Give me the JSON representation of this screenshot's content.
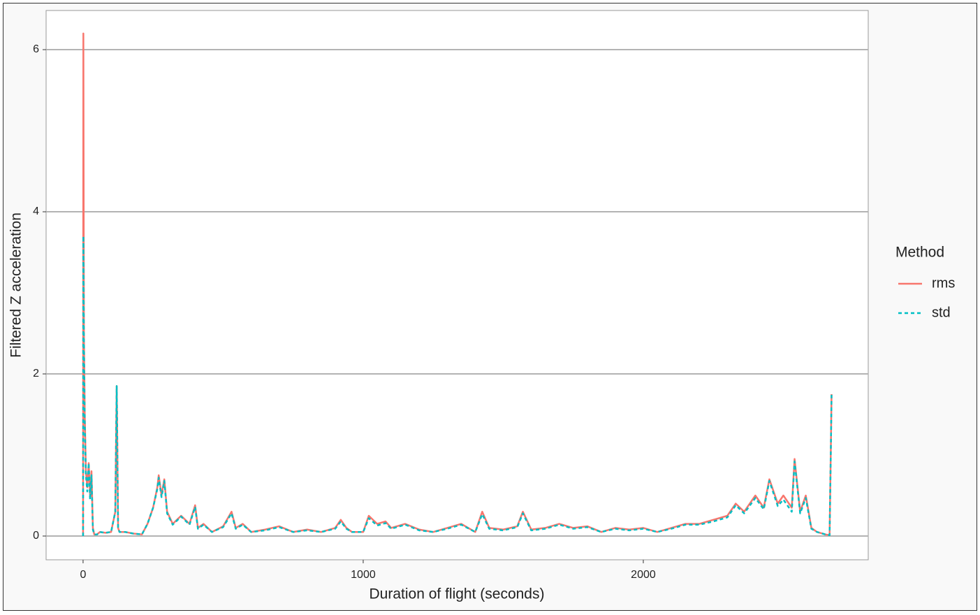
{
  "chart_data": {
    "type": "line",
    "x_label": "Duration of flight (seconds)",
    "y_label": "Filtered Z acceleration",
    "legend_title": "Method",
    "legend_position": "right",
    "grid": true,
    "xlim": [
      -132,
      2803
    ],
    "ylim": [
      -0.293,
      6.483
    ],
    "xticks": [
      0,
      1000,
      2000
    ],
    "yticks": [
      0,
      2,
      4,
      6
    ],
    "x": [
      0,
      1,
      3,
      6,
      10,
      15,
      20,
      25,
      30,
      35,
      40,
      50,
      60,
      80,
      100,
      115,
      120,
      122,
      125,
      130,
      150,
      180,
      210,
      230,
      250,
      265,
      270,
      280,
      290,
      300,
      320,
      350,
      380,
      400,
      410,
      430,
      460,
      500,
      530,
      545,
      570,
      600,
      650,
      700,
      750,
      800,
      850,
      900,
      920,
      940,
      960,
      1000,
      1020,
      1050,
      1080,
      1100,
      1150,
      1200,
      1250,
      1300,
      1350,
      1400,
      1425,
      1450,
      1500,
      1550,
      1570,
      1600,
      1650,
      1700,
      1750,
      1800,
      1850,
      1900,
      1950,
      2000,
      2050,
      2100,
      2150,
      2200,
      2250,
      2300,
      2330,
      2360,
      2400,
      2430,
      2450,
      2480,
      2500,
      2530,
      2540,
      2560,
      2580,
      2600,
      2620,
      2650,
      2665,
      2670,
      2672
    ],
    "series": [
      {
        "name": "rms",
        "color": "#F8766D",
        "dash": false,
        "values": [
          0,
          6.2,
          2.5,
          1.5,
          0.8,
          0.6,
          0.9,
          0.5,
          0.8,
          0.1,
          0.02,
          0.02,
          0.05,
          0.04,
          0.05,
          0.3,
          1.85,
          1.2,
          0.1,
          0.05,
          0.05,
          0.03,
          0.02,
          0.15,
          0.35,
          0.6,
          0.75,
          0.5,
          0.7,
          0.3,
          0.15,
          0.25,
          0.15,
          0.38,
          0.1,
          0.15,
          0.05,
          0.12,
          0.3,
          0.1,
          0.15,
          0.05,
          0.08,
          0.12,
          0.05,
          0.08,
          0.05,
          0.1,
          0.2,
          0.1,
          0.05,
          0.05,
          0.25,
          0.15,
          0.18,
          0.1,
          0.15,
          0.08,
          0.05,
          0.1,
          0.15,
          0.05,
          0.3,
          0.1,
          0.08,
          0.12,
          0.3,
          0.08,
          0.1,
          0.15,
          0.1,
          0.12,
          0.05,
          0.1,
          0.08,
          0.1,
          0.05,
          0.1,
          0.15,
          0.15,
          0.2,
          0.25,
          0.4,
          0.3,
          0.5,
          0.35,
          0.7,
          0.4,
          0.5,
          0.35,
          0.95,
          0.3,
          0.5,
          0.1,
          0.05,
          0.02,
          0.01,
          1.2,
          1.75
        ]
      },
      {
        "name": "std",
        "color": "#00BFC4",
        "dash": true,
        "values": [
          0,
          3.7,
          2.4,
          1.4,
          0.75,
          0.55,
          0.9,
          0.45,
          0.75,
          0.08,
          0.02,
          0.02,
          0.05,
          0.04,
          0.05,
          0.3,
          1.85,
          1.2,
          0.1,
          0.05,
          0.05,
          0.03,
          0.02,
          0.15,
          0.35,
          0.58,
          0.72,
          0.48,
          0.68,
          0.28,
          0.14,
          0.24,
          0.14,
          0.36,
          0.09,
          0.14,
          0.05,
          0.11,
          0.28,
          0.09,
          0.14,
          0.05,
          0.07,
          0.11,
          0.05,
          0.07,
          0.05,
          0.09,
          0.18,
          0.09,
          0.05,
          0.05,
          0.22,
          0.13,
          0.16,
          0.09,
          0.14,
          0.07,
          0.05,
          0.09,
          0.14,
          0.05,
          0.27,
          0.09,
          0.07,
          0.11,
          0.28,
          0.07,
          0.09,
          0.14,
          0.09,
          0.11,
          0.05,
          0.09,
          0.07,
          0.09,
          0.05,
          0.09,
          0.14,
          0.14,
          0.18,
          0.23,
          0.38,
          0.28,
          0.47,
          0.33,
          0.68,
          0.37,
          0.45,
          0.3,
          0.92,
          0.28,
          0.47,
          0.09,
          0.05,
          0.02,
          0.01,
          1.18,
          1.75
        ]
      }
    ]
  }
}
